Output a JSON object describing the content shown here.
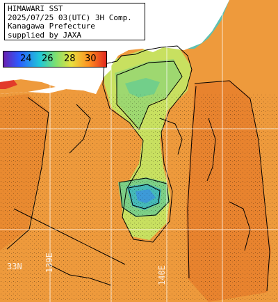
{
  "header": {
    "lines": [
      "HIMAWARI SST",
      "2025/07/25 03(UTC) 3H Comp.",
      "Kanagawa Prefecture",
      "supplied by JAXA"
    ]
  },
  "legend": {
    "labels": [
      "24",
      "26",
      "28",
      "30"
    ],
    "colors": [
      "#6a1fb0",
      "#2b5cff",
      "#20c8d8",
      "#7de070",
      "#e8e040",
      "#ff9020",
      "#e02020"
    ]
  },
  "grid_labels": {
    "lat_left": "33N",
    "lon_a": "139E",
    "lon_b": "140E"
  },
  "colors": {
    "land": "#ffffff",
    "warm_sea": "#ee9a3c",
    "hot_sea": "#e87b2a",
    "cool_sea": "#a8d86a",
    "cold_sea": "#3a8ae0",
    "grid": "#ffffff"
  }
}
